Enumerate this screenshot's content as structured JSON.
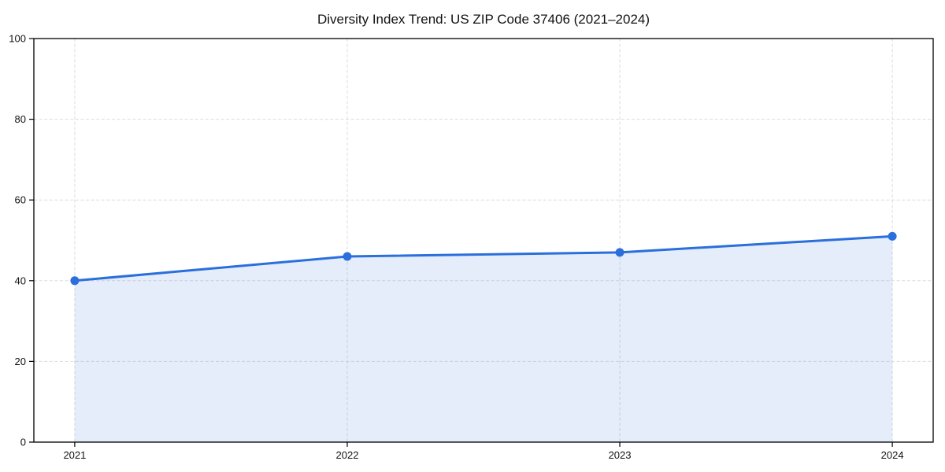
{
  "page": {
    "background": "#ffffff"
  },
  "chart_data": {
    "type": "area",
    "title": "Diversity Index Trend: US ZIP Code 37406 (2021–2024)",
    "x": [
      2021,
      2022,
      2023,
      2024
    ],
    "values": [
      40,
      46,
      47,
      51
    ],
    "series_name": "Diversity Index",
    "xlabel": "",
    "ylabel": "",
    "ylim": [
      0,
      100
    ],
    "yticks": [
      0,
      20,
      40,
      60,
      80,
      100
    ],
    "xticks": [
      "2021",
      "2022",
      "2023",
      "2024"
    ],
    "grid": true,
    "grid_style": "dashed",
    "legend": false,
    "line_color": "#2a6fdb",
    "marker_color": "#2a6fdb",
    "fill_color": "#2a6fdb",
    "fill_opacity": 0.12,
    "spine_color": "#000000",
    "grid_color": "#dcdcdc"
  }
}
